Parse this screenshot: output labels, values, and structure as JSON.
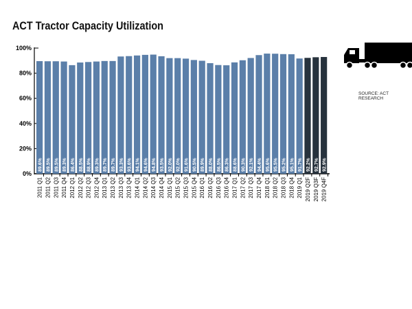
{
  "chart_data": {
    "type": "bar",
    "title": "ACT Tractor Capacity Utilization",
    "source": "SOURCE: ACT RESEARCH",
    "xlabel": "",
    "ylabel": "",
    "ylim": [
      0,
      100
    ],
    "yticks": [
      "0%",
      "20%",
      "40%",
      "60%",
      "80%",
      "100%"
    ],
    "categories": [
      "2011 Q1",
      "2011 Q2",
      "2011 Q3",
      "2011 Q4",
      "2012 Q1",
      "2012 Q2",
      "2012 Q3",
      "2012 Q4",
      "2013 Q1",
      "2013 Q2",
      "2013 Q3",
      "2013 Q4",
      "2014 Q1",
      "2014 Q2",
      "2014 Q3",
      "2014 Q4",
      "2015 Q1",
      "2015 Q2",
      "2015 Q3",
      "2015 Q4",
      "2016 Q1",
      "2016 Q2",
      "2016 Q3",
      "2016 Q4",
      "2017 Q1",
      "2017 Q2",
      "2017 Q3",
      "2017 Q4",
      "2018 Q1",
      "2018 Q2",
      "2018 Q3",
      "2018 Q4",
      "2019 Q1",
      "2019 Q2F",
      "2019 Q3F",
      "2019 Q4F"
    ],
    "values": [
      89.6,
      89.5,
      89.5,
      89.3,
      86.4,
      88.5,
      88.9,
      89.3,
      89.7,
      89.7,
      93.3,
      93.6,
      94.1,
      94.6,
      94.8,
      93.5,
      92.0,
      92.0,
      91.6,
      90.5,
      89.9,
      88.0,
      86.5,
      86.3,
      88.6,
      90.3,
      92.1,
      94.4,
      95.6,
      95.5,
      95.2,
      95.1,
      91.7,
      92.2,
      92.7,
      92.9
    ],
    "forecast_from_index": 33,
    "colors": {
      "actual": "#5b7fa9",
      "forecast": "#27323d"
    }
  }
}
